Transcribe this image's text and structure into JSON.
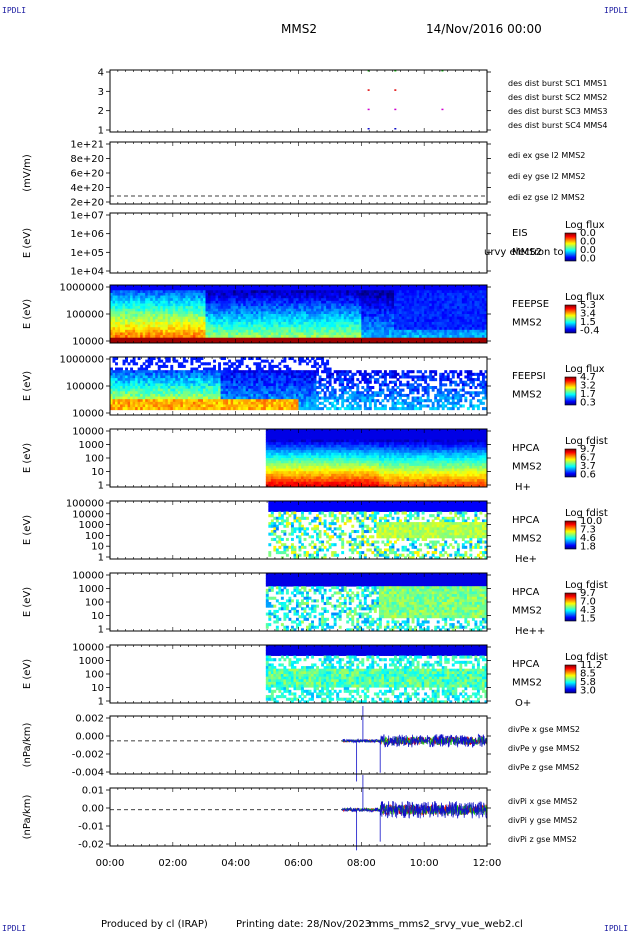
{
  "header": {
    "corner_tl": "IPDLI",
    "corner_tr": "IPDLI",
    "corner_bl": "IPDLI",
    "corner_br": "IPDLI",
    "spacecraft": "MMS2",
    "date": "14/Nov/2016 00:00"
  },
  "footer": {
    "produced_by": "Produced by cl (IRAP)",
    "printing_date": "Printing date: 28/Nov/2023",
    "file_name": "mms_mms2_srvy_vue_web2.cl"
  },
  "colors": {
    "blue": "#1010c8",
    "red": "#e00000",
    "green": "#10c010",
    "magenta": "#d000d0",
    "dark_blue": "#0000a0"
  },
  "chart_data": {
    "type": "stacked-panels",
    "x_axis": {
      "range": [
        "00:00",
        "12:00"
      ],
      "tick_labels": [
        "00:00",
        "02:00",
        "04:00",
        "06:00",
        "08:00",
        "10:00",
        "12:00"
      ]
    },
    "panels": [
      {
        "id": "burst",
        "type": "line",
        "y_ticks": [
          "1",
          "2",
          "3",
          "4"
        ],
        "ylabel": "",
        "legend": [
          {
            "name": "des dist burst SC1 MMS1",
            "color": "#1010c8"
          },
          {
            "name": "des dist burst SC2 MMS2",
            "color": "#d000d0"
          },
          {
            "name": "des dist burst SC3 MMS3",
            "color": "#e00000"
          },
          {
            "name": "des dist burst SC4 MMS4",
            "color": "#10c010"
          }
        ],
        "marks": [
          {
            "time": 8.2,
            "sc": [
              1,
              2,
              3,
              4
            ]
          },
          {
            "time": 9.05,
            "sc": [
              1,
              2,
              3,
              4
            ]
          },
          {
            "time": 10.55,
            "sc": [
              2,
              4
            ]
          }
        ]
      },
      {
        "id": "edi",
        "type": "line",
        "ylabel": "(mV/m)",
        "y_ticks": [
          "2e+20",
          "4e+20",
          "6e+20",
          "8e+20",
          "1e+21"
        ],
        "legend": [
          {
            "name": "edi ex gse l2 MMS2",
            "color": "#e00000"
          },
          {
            "name": "edi ey gse l2 MMS2",
            "color": "#10c010"
          },
          {
            "name": "edi ez gse l2 MMS2",
            "color": "#1010c8"
          }
        ]
      },
      {
        "id": "eis",
        "type": "heatmap",
        "ylabel": "E (eV)",
        "y_ticks": [
          "1e+04",
          "1e+05",
          "1e+06",
          "1e+07"
        ],
        "instrument": "EIS",
        "sc": "MMS2",
        "overlay_text": "urvy electron to",
        "colorbar": {
          "title": "Log flux",
          "ticks": [
            "0.0",
            "0.0",
            "0.0",
            "0.0"
          ]
        }
      },
      {
        "id": "feepse",
        "type": "heatmap",
        "ylabel": "E (eV)",
        "y_ticks": [
          "10000",
          "100000",
          "1000000"
        ],
        "instrument": "FEEPSE",
        "sc": "MMS2",
        "colorbar": {
          "title": "Log flux",
          "ticks": [
            "5.3",
            "3.4",
            "1.5",
            "-0.4"
          ]
        }
      },
      {
        "id": "feepsi",
        "type": "heatmap",
        "ylabel": "E (eV)",
        "y_ticks": [
          "10000",
          "100000",
          "1000000"
        ],
        "instrument": "FEEPSI",
        "sc": "MMS2",
        "colorbar": {
          "title": "Log flux",
          "ticks": [
            "4.7",
            "3.2",
            "1.7",
            "0.3"
          ]
        }
      },
      {
        "id": "hpca_h",
        "type": "heatmap",
        "ylabel": "E (eV)",
        "y_ticks": [
          "1",
          "10",
          "100",
          "1000",
          "10000"
        ],
        "instrument": "HPCA",
        "sc": "MMS2",
        "species": "H+",
        "colorbar": {
          "title": "Log fdist",
          "ticks": [
            "9.7",
            "6.7",
            "3.7",
            "0.6"
          ]
        }
      },
      {
        "id": "hpca_he",
        "type": "heatmap",
        "ylabel": "E (eV)",
        "y_ticks": [
          "1",
          "10",
          "100",
          "1000",
          "10000",
          "100000"
        ],
        "instrument": "HPCA",
        "sc": "MMS2",
        "species": "He+",
        "colorbar": {
          "title": "Log fdist",
          "ticks": [
            "10.0",
            "7.3",
            "4.6",
            "1.8"
          ]
        }
      },
      {
        "id": "hpca_hepp",
        "type": "heatmap",
        "ylabel": "E (eV)",
        "y_ticks": [
          "1",
          "10",
          "100",
          "1000",
          "10000"
        ],
        "instrument": "HPCA",
        "sc": "MMS2",
        "species": "He++",
        "colorbar": {
          "title": "Log fdist",
          "ticks": [
            "9.7",
            "7.0",
            "4.3",
            "1.5"
          ]
        }
      },
      {
        "id": "hpca_o",
        "type": "heatmap",
        "ylabel": "E (eV)",
        "y_ticks": [
          "1",
          "10",
          "100",
          "1000",
          "10000"
        ],
        "instrument": "HPCA",
        "sc": "MMS2",
        "species": "O+",
        "colorbar": {
          "title": "Log fdist",
          "ticks": [
            "11.2",
            "8.5",
            "5.8",
            "3.0"
          ]
        }
      },
      {
        "id": "divpe",
        "type": "line",
        "ylabel": "(nPa/km)",
        "y_ticks": [
          "-0.004",
          "-0.002",
          "0.000",
          "0.002"
        ],
        "ylim": [
          -0.004,
          0.003
        ],
        "legend": [
          {
            "name": "divPe x gse MMS2",
            "color": "#e00000"
          },
          {
            "name": "divPe y gse MMS2",
            "color": "#10c010"
          },
          {
            "name": "divPe z gse MMS2",
            "color": "#1010c8"
          }
        ]
      },
      {
        "id": "divpi",
        "type": "line",
        "ylabel": "(nPa/km)",
        "y_ticks": [
          "-0.02",
          "-0.01",
          "0.00",
          "0.01"
        ],
        "ylim": [
          -0.025,
          0.015
        ],
        "legend": [
          {
            "name": "divPi x gse MMS2",
            "color": "#e00000"
          },
          {
            "name": "divPi y gse MMS2",
            "color": "#10c010"
          },
          {
            "name": "divPi z gse MMS2",
            "color": "#1010c8"
          }
        ]
      }
    ]
  }
}
